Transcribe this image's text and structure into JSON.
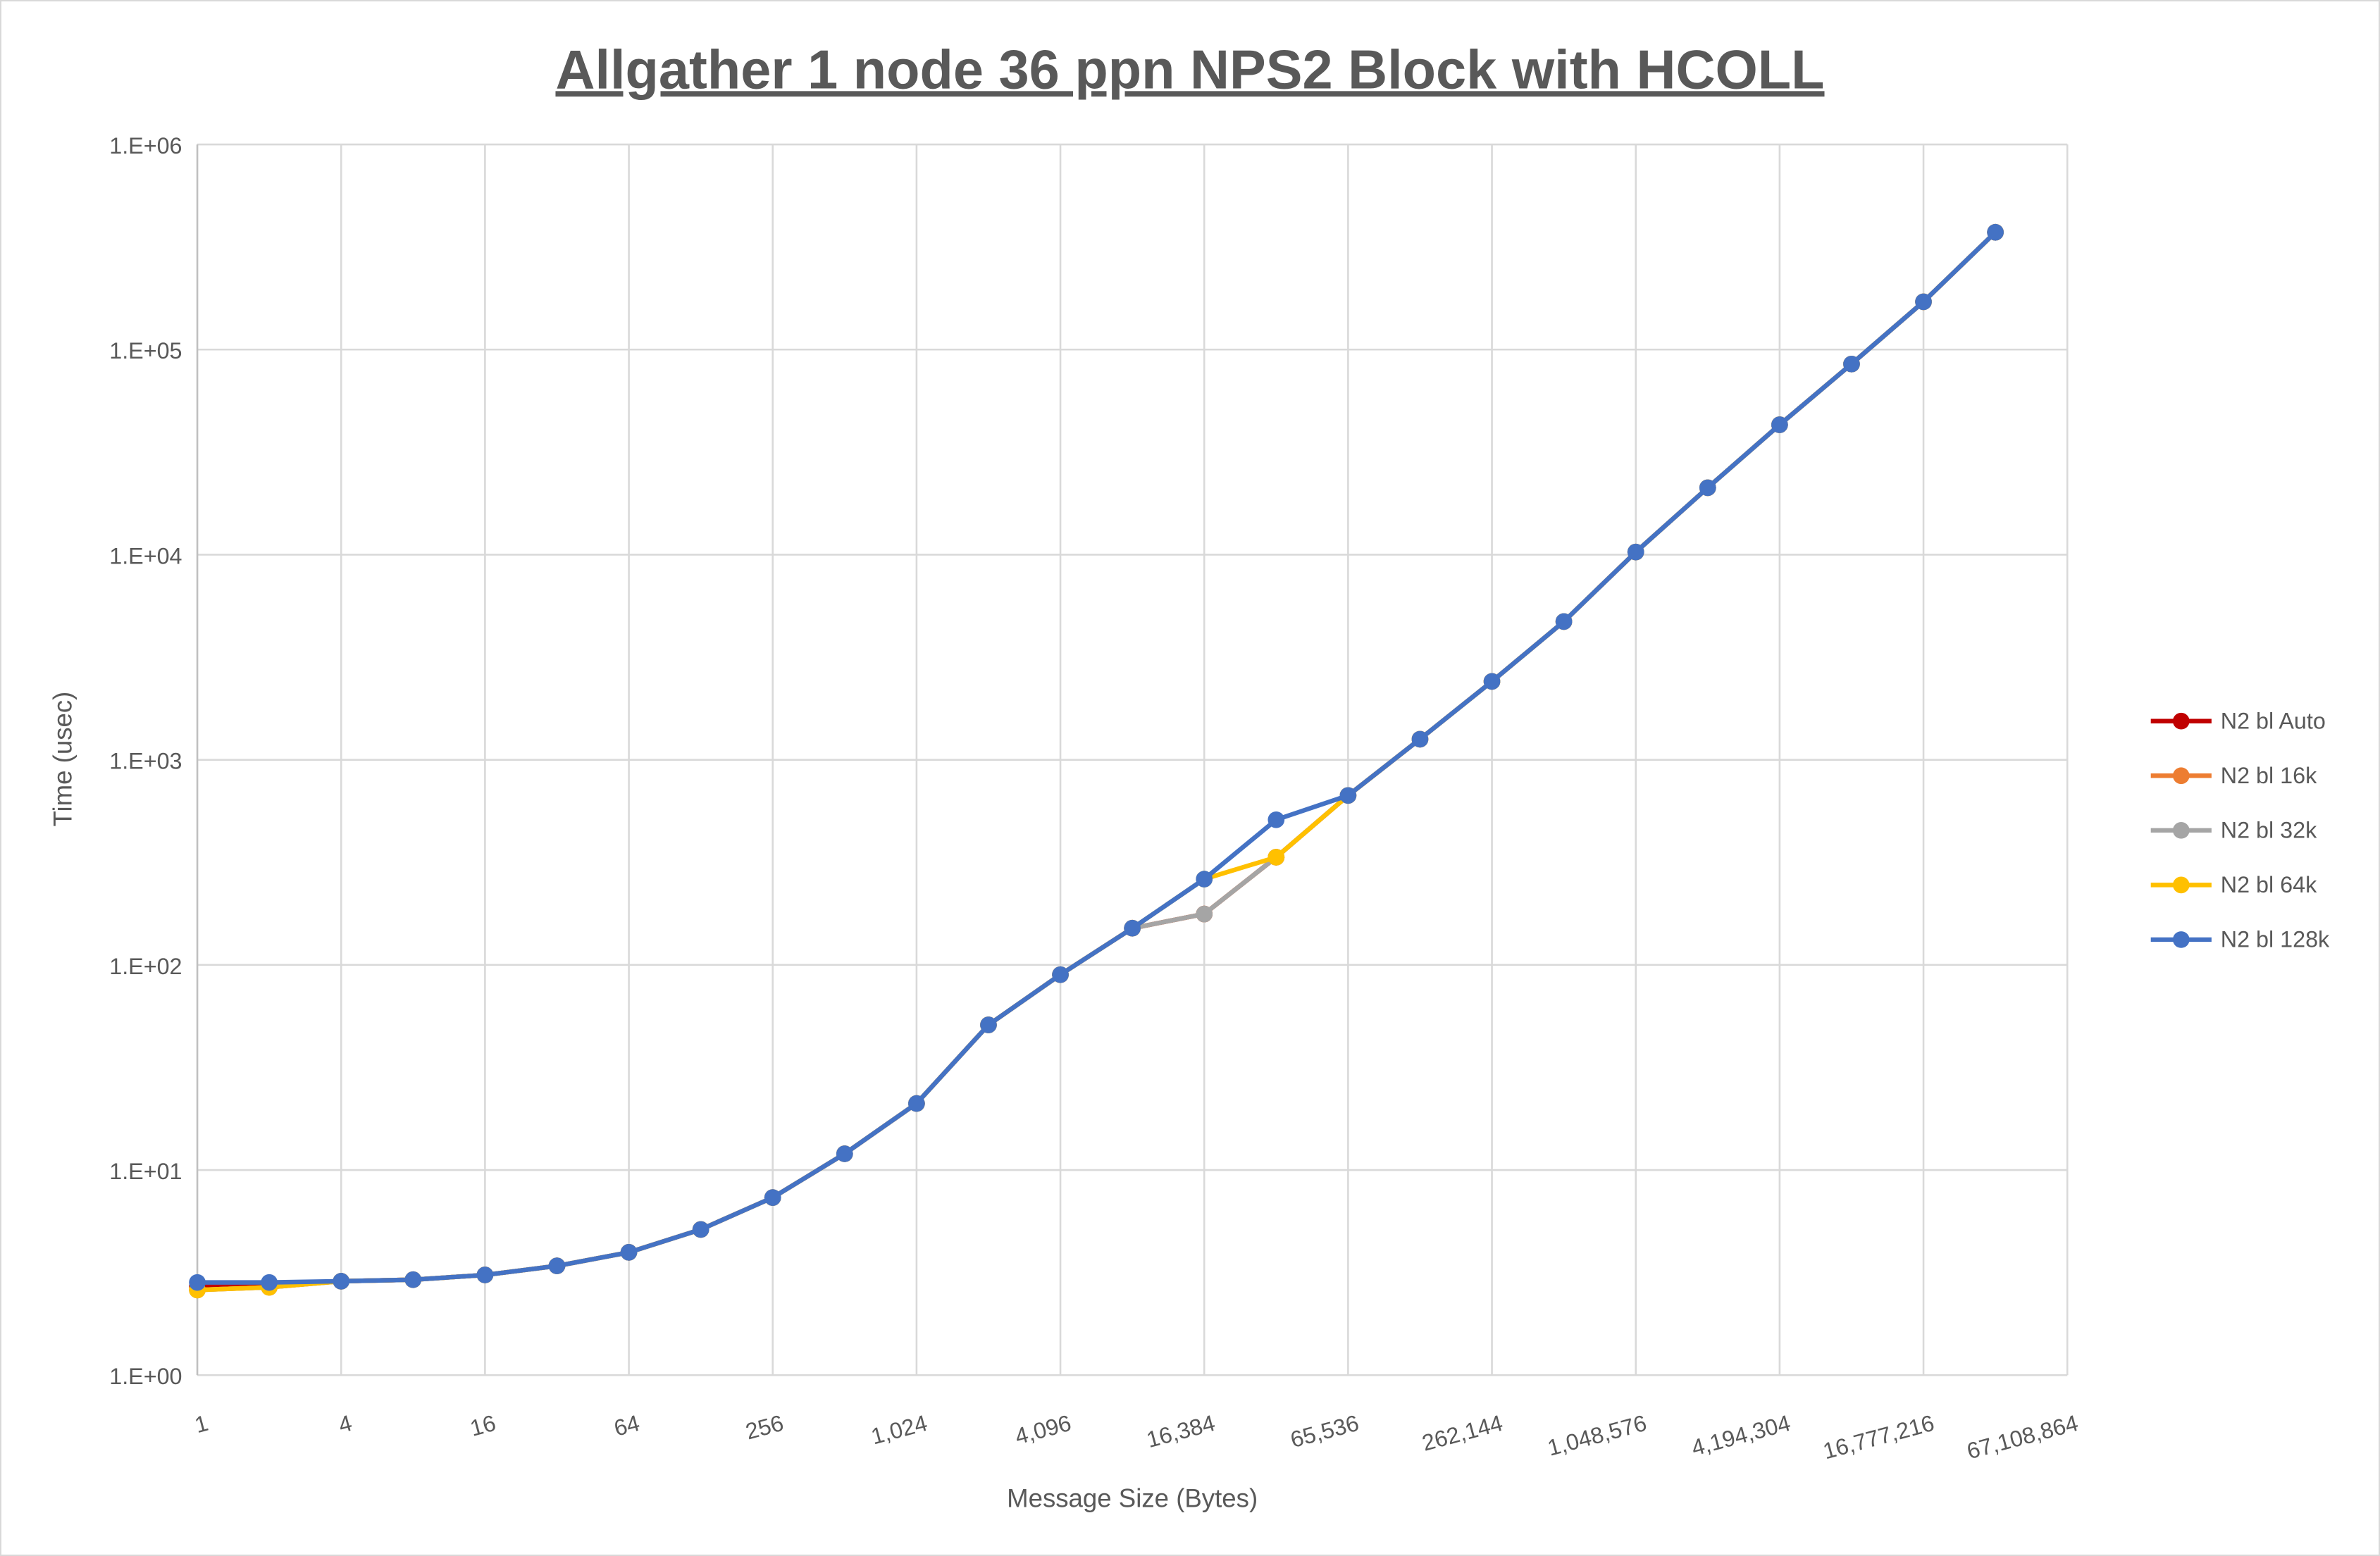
{
  "chart_data": {
    "type": "line",
    "title": "Allgather 1 node 36 ppn NPS2 Block with HCOLL",
    "xlabel": "Message Size (Bytes)",
    "ylabel": "Time (usec)",
    "x_scale": "log2",
    "y_scale": "log10",
    "xlim": [
      1,
      67108864
    ],
    "ylim": [
      1,
      1000000
    ],
    "x_tick_labels": [
      "1",
      "4",
      "16",
      "64",
      "256",
      "1,024",
      "4,096",
      "16,384",
      "65,536",
      "262,144",
      "1,048,576",
      "4,194,304",
      "16,777,216",
      "67,108,864"
    ],
    "x_tick_values": [
      1,
      4,
      16,
      64,
      256,
      1024,
      4096,
      16384,
      65536,
      262144,
      1048576,
      4194304,
      16777216,
      67108864
    ],
    "y_tick_labels": [
      "1.E+00",
      "1.E+01",
      "1.E+02",
      "1.E+03",
      "1.E+04",
      "1.E+05",
      "1.E+06"
    ],
    "y_tick_values": [
      1,
      10,
      100,
      1000,
      10000,
      100000,
      1000000
    ],
    "grid": true,
    "legend_position": "right",
    "x": [
      1,
      2,
      4,
      8,
      16,
      32,
      64,
      128,
      256,
      512,
      1024,
      2048,
      4096,
      8192,
      16384,
      32768,
      65536,
      131072,
      262144,
      524288,
      1048576,
      2097152,
      4194304,
      8388608,
      16777216,
      33554432
    ],
    "series": [
      {
        "name": "N2 bl Auto",
        "color": "#c00000",
        "values": [
          2.7,
          2.75,
          2.87,
          2.92,
          3.08,
          3.41,
          3.97,
          5.13,
          7.34,
          12.0,
          21.1,
          51,
          89.6,
          151,
          177,
          335,
          670,
          1260,
          2410,
          4720,
          10300,
          21200,
          43000,
          85000,
          171000,
          373000
        ]
      },
      {
        "name": "N2 bl 16k",
        "color": "#ed7d31",
        "values": [
          2.6,
          2.68,
          2.87,
          2.92,
          3.08,
          3.41,
          3.97,
          5.13,
          7.34,
          12.0,
          21.1,
          51,
          89.6,
          151,
          177,
          335,
          670,
          1260,
          2410,
          4720,
          10300,
          21200,
          43000,
          85000,
          171000,
          373000
        ]
      },
      {
        "name": "N2 bl 32k",
        "color": "#a5a5a5",
        "values": [
          2.6,
          2.68,
          2.87,
          2.92,
          3.08,
          3.41,
          3.97,
          5.13,
          7.34,
          12.0,
          21.1,
          51,
          89.6,
          151,
          177,
          335,
          670,
          1260,
          2410,
          4720,
          10300,
          21200,
          43000,
          85000,
          171000,
          373000
        ]
      },
      {
        "name": "N2 bl 64k",
        "color": "#ffc000",
        "values": [
          2.6,
          2.68,
          2.87,
          2.92,
          3.08,
          3.41,
          3.97,
          5.13,
          7.34,
          12.0,
          21.1,
          51,
          89.6,
          151,
          262,
          335,
          670,
          1260,
          2410,
          4720,
          10300,
          21200,
          43000,
          85000,
          171000,
          373000
        ]
      },
      {
        "name": "N2 bl 128k",
        "color": "#4472c4",
        "values": [
          2.83,
          2.83,
          2.87,
          2.92,
          3.08,
          3.41,
          3.97,
          5.13,
          7.34,
          12.0,
          21.1,
          51,
          89.6,
          151,
          262,
          510,
          670,
          1260,
          2410,
          4720,
          10300,
          21200,
          43000,
          85000,
          171000,
          373000
        ]
      }
    ]
  }
}
